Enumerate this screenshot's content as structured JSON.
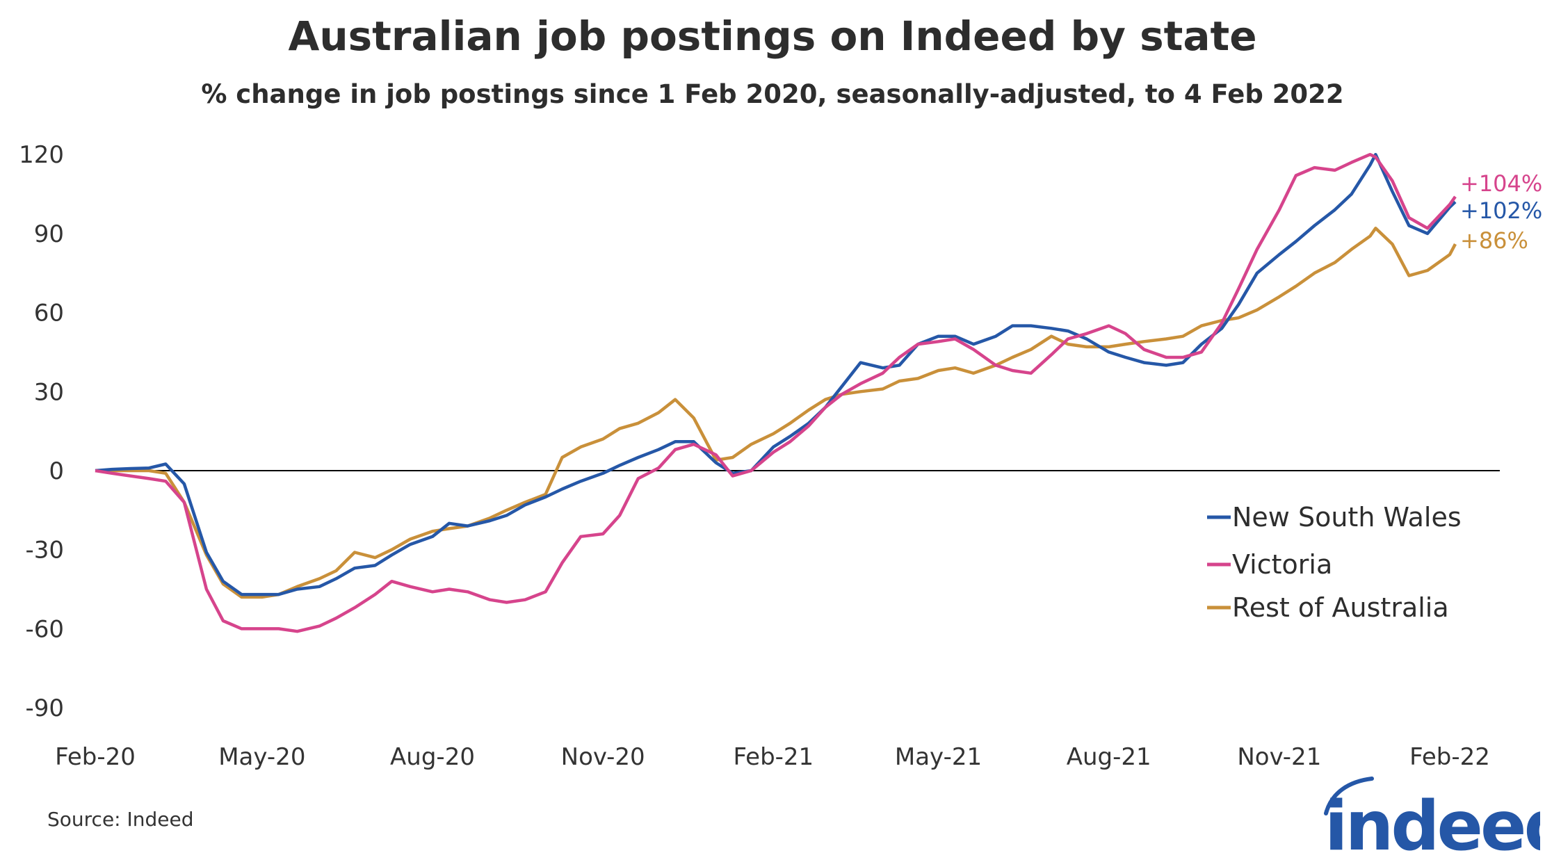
{
  "title": "Australian job postings on Indeed by state",
  "subtitle": "% change in job postings since 1 Feb 2020, seasonally-adjusted, to 4 Feb 2022",
  "source": "Source: Indeed",
  "logo_text": "indeed",
  "chart_data": {
    "type": "line",
    "title": "Australian job postings on Indeed by state",
    "subtitle": "% change in job postings since 1 Feb 2020, seasonally-adjusted, to 4 Feb 2022",
    "xlabel": "",
    "ylabel": "",
    "ylim": [
      -90,
      120
    ],
    "yticks": [
      120,
      90,
      60,
      30,
      0,
      -30,
      -60,
      -90
    ],
    "xlim": [
      "2020-02-01",
      "2022-02-04"
    ],
    "xticks": [
      {
        "date": "2020-02-01",
        "label": "Feb-20"
      },
      {
        "date": "2020-05-01",
        "label": "May-20"
      },
      {
        "date": "2020-08-01",
        "label": "Aug-20"
      },
      {
        "date": "2020-11-01",
        "label": "Nov-20"
      },
      {
        "date": "2021-02-01",
        "label": "Feb-21"
      },
      {
        "date": "2021-05-01",
        "label": "May-21"
      },
      {
        "date": "2021-08-01",
        "label": "Aug-21"
      },
      {
        "date": "2021-11-01",
        "label": "Nov-21"
      },
      {
        "date": "2022-02-01",
        "label": "Feb-22"
      }
    ],
    "grid": false,
    "zero_line": true,
    "legend_position": "right",
    "dates": [
      "2020-02-01",
      "2020-02-10",
      "2020-02-20",
      "2020-03-01",
      "2020-03-10",
      "2020-03-20",
      "2020-04-01",
      "2020-04-10",
      "2020-04-20",
      "2020-05-01",
      "2020-05-10",
      "2020-05-20",
      "2020-06-01",
      "2020-06-10",
      "2020-06-20",
      "2020-07-01",
      "2020-07-10",
      "2020-07-20",
      "2020-08-01",
      "2020-08-10",
      "2020-08-20",
      "2020-09-01",
      "2020-09-10",
      "2020-09-20",
      "2020-10-01",
      "2020-10-10",
      "2020-10-20",
      "2020-11-01",
      "2020-11-10",
      "2020-11-20",
      "2020-12-01",
      "2020-12-10",
      "2020-12-20",
      "2021-01-01",
      "2021-01-10",
      "2021-01-20",
      "2021-02-01",
      "2021-02-10",
      "2021-02-20",
      "2021-03-01",
      "2021-03-10",
      "2021-03-20",
      "2021-04-01",
      "2021-04-10",
      "2021-04-20",
      "2021-05-01",
      "2021-05-10",
      "2021-05-20",
      "2021-06-01",
      "2021-06-10",
      "2021-06-20",
      "2021-07-01",
      "2021-07-10",
      "2021-07-20",
      "2021-08-01",
      "2021-08-10",
      "2021-08-20",
      "2021-09-01",
      "2021-09-10",
      "2021-09-20",
      "2021-10-01",
      "2021-10-10",
      "2021-10-20",
      "2021-11-01",
      "2021-11-10",
      "2021-11-20",
      "2021-12-01",
      "2021-12-10",
      "2021-12-20",
      "2021-12-23",
      "2022-01-01",
      "2022-01-10",
      "2022-01-20",
      "2022-02-01",
      "2022-02-04"
    ],
    "series": [
      {
        "name": "New South Wales",
        "color": "#2557a7",
        "end_label": "+102%",
        "values": [
          0,
          0.5,
          0.8,
          1,
          2.5,
          -5,
          -31,
          -42,
          -47,
          -47,
          -47,
          -45,
          -44,
          -41,
          -37,
          -36,
          -32,
          -28,
          -25,
          -20,
          -21,
          -19,
          -17,
          -13,
          -10,
          -7,
          -4,
          -1,
          2,
          5,
          8,
          11,
          11,
          3,
          -1,
          0,
          9,
          13,
          18,
          24,
          32,
          41,
          39,
          40,
          48,
          51,
          51,
          48,
          51,
          55,
          55,
          54,
          53,
          50,
          45,
          43,
          41,
          40,
          41,
          48,
          54,
          63,
          75,
          82,
          87,
          93,
          99,
          105,
          116,
          120,
          106,
          93,
          90,
          100,
          102
        ]
      },
      {
        "name": "Victoria",
        "color": "#d6448c",
        "end_label": "+104%",
        "values": [
          0,
          -1,
          -2,
          -3,
          -4,
          -12,
          -45,
          -57,
          -60,
          -60,
          -60,
          -61,
          -59,
          -56,
          -52,
          -47,
          -42,
          -44,
          -46,
          -45,
          -46,
          -49,
          -50,
          -49,
          -46,
          -35,
          -25,
          -24,
          -17,
          -3,
          1,
          8,
          10,
          6,
          -2,
          0,
          7,
          11,
          17,
          24,
          29,
          33,
          37,
          43,
          48,
          49,
          50,
          46,
          40,
          38,
          37,
          44,
          50,
          52,
          55,
          52,
          46,
          43,
          43,
          45,
          56,
          69,
          84,
          99,
          112,
          115,
          114,
          117,
          120,
          119,
          110,
          96,
          92,
          101,
          104
        ]
      },
      {
        "name": "Rest of Australia",
        "color": "#c9903a",
        "end_label": "+86%",
        "values": [
          0,
          0,
          0,
          0,
          -1,
          -12,
          -32,
          -43,
          -48,
          -48,
          -47,
          -44,
          -41,
          -38,
          -31,
          -33,
          -30,
          -26,
          -23,
          -22,
          -21,
          -18,
          -15,
          -12,
          -9,
          5,
          9,
          12,
          16,
          18,
          22,
          27,
          20,
          4,
          5,
          10,
          14,
          18,
          23,
          27,
          29,
          30,
          31,
          34,
          35,
          38,
          39,
          37,
          40,
          43,
          46,
          51,
          48,
          47,
          47,
          48,
          49,
          50,
          51,
          55,
          57,
          58,
          61,
          66,
          70,
          75,
          79,
          84,
          89,
          92,
          86,
          74,
          76,
          82,
          86
        ]
      }
    ]
  }
}
